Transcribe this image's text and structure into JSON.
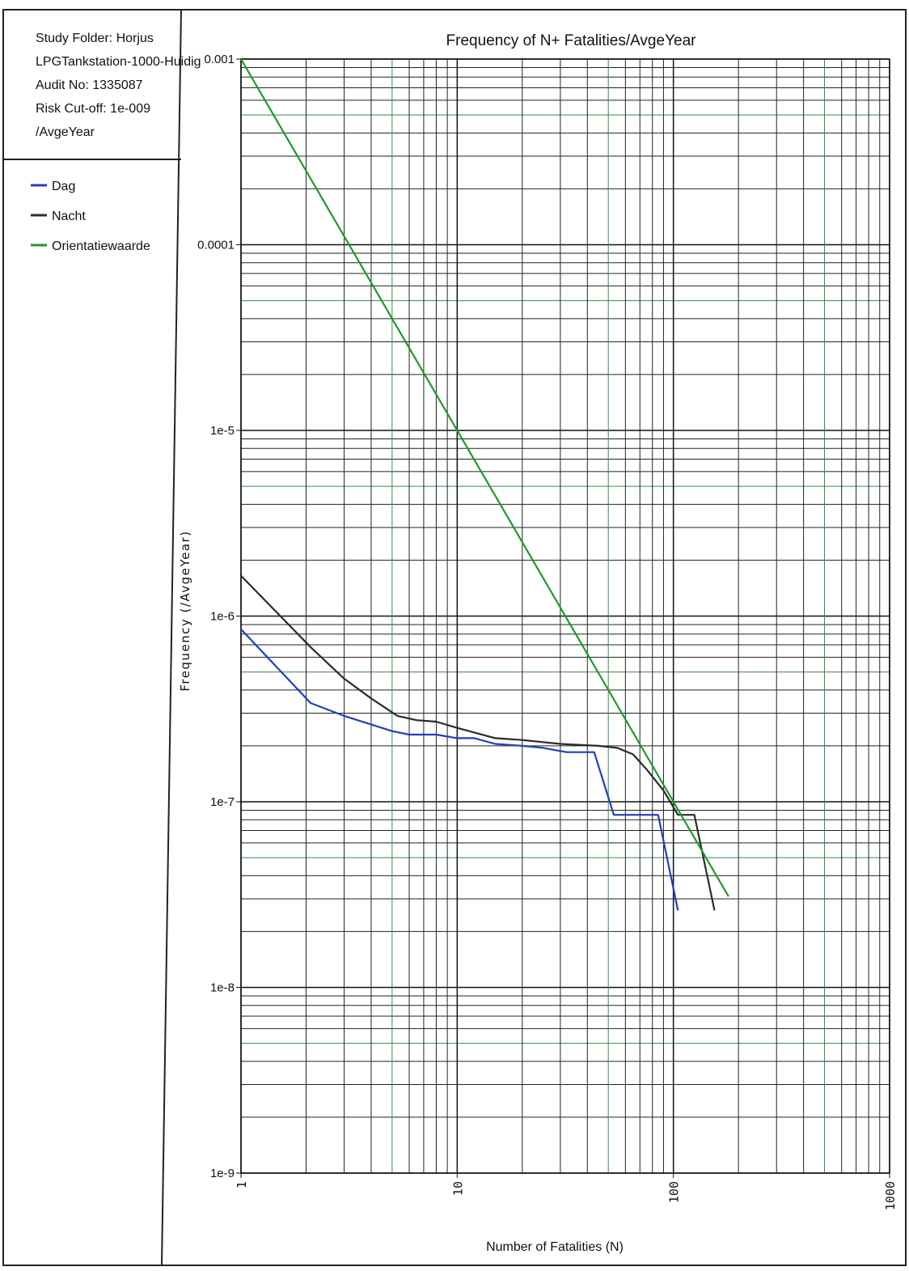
{
  "info": {
    "lines": [
      "Study Folder: Horjus",
      "LPGTankstation-1000-Huidig",
      "Audit No: 1335087",
      "Risk Cut-off: 1e-009",
      "/AvgeYear"
    ]
  },
  "legend": {
    "items": [
      {
        "label": "Dag",
        "color": "#1f3fbf"
      },
      {
        "label": "Nacht",
        "color": "#2b2b2b"
      },
      {
        "label": "Orientatiewaarde",
        "color": "#1e9a2a"
      }
    ]
  },
  "chart_data": {
    "type": "line",
    "title": "Frequency of N+ Fatalities/AvgeYear",
    "xlabel": "Number of Fatalities (N)",
    "ylabel": "Frequency (/AvgeYear)",
    "x_scale": "log",
    "y_scale": "log",
    "xlim": [
      1,
      1000
    ],
    "ylim": [
      1e-09,
      0.001
    ],
    "grid": true,
    "legend_position": "left panel",
    "x_ticks": [
      {
        "value": 1,
        "label": "1"
      },
      {
        "value": 10,
        "label": "10"
      },
      {
        "value": 100,
        "label": "100"
      },
      {
        "value": 1000,
        "label": "1000"
      }
    ],
    "y_ticks": [
      {
        "value": 0.001,
        "label": "0.001"
      },
      {
        "value": 0.0001,
        "label": "0.0001"
      },
      {
        "value": 1e-05,
        "label": "1e-5"
      },
      {
        "value": 1e-06,
        "label": "1e-6"
      },
      {
        "value": 1e-07,
        "label": "1e-7"
      },
      {
        "value": 1e-08,
        "label": "1e-8"
      },
      {
        "value": 1e-09,
        "label": "1e-9"
      }
    ],
    "series": [
      {
        "name": "Dag",
        "color": "#1f3fbf",
        "points": [
          [
            1,
            8.5e-07
          ],
          [
            2.1,
            3.4e-07
          ],
          [
            3,
            2.9e-07
          ],
          [
            5,
            2.4e-07
          ],
          [
            6,
            2.3e-07
          ],
          [
            8,
            2.3e-07
          ],
          [
            10,
            2.2e-07
          ],
          [
            12,
            2.2e-07
          ],
          [
            15,
            2.05e-07
          ],
          [
            20,
            2e-07
          ],
          [
            25,
            1.95e-07
          ],
          [
            32,
            1.85e-07
          ],
          [
            43,
            1.85e-07
          ],
          [
            53,
            8.5e-08
          ],
          [
            85,
            8.5e-08
          ],
          [
            105,
            2.6e-08
          ]
        ]
      },
      {
        "name": "Nacht",
        "color": "#2b2b2b",
        "points": [
          [
            1,
            1.65e-06
          ],
          [
            2.1,
            6.8e-07
          ],
          [
            3,
            4.6e-07
          ],
          [
            4,
            3.6e-07
          ],
          [
            5.3,
            2.9e-07
          ],
          [
            6.5,
            2.75e-07
          ],
          [
            8,
            2.7e-07
          ],
          [
            10,
            2.5e-07
          ],
          [
            15,
            2.2e-07
          ],
          [
            20,
            2.15e-07
          ],
          [
            30,
            2.05e-07
          ],
          [
            45,
            2e-07
          ],
          [
            55,
            1.95e-07
          ],
          [
            65,
            1.8e-07
          ],
          [
            75,
            1.5e-07
          ],
          [
            90,
            1.15e-07
          ],
          [
            105,
            8.5e-08
          ],
          [
            125,
            8.5e-08
          ],
          [
            155,
            2.6e-08
          ]
        ]
      },
      {
        "name": "Orientatiewaarde",
        "color": "#1e9a2a",
        "points": [
          [
            1,
            0.001
          ],
          [
            180,
            3.09e-08
          ]
        ]
      }
    ]
  }
}
